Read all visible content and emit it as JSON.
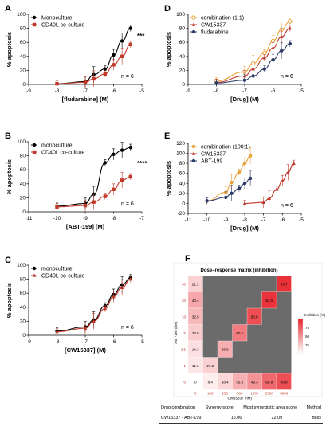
{
  "chart_data": [
    {
      "panel": "A",
      "type": "line",
      "xlabel": "[fludarabine] (M)",
      "ylabel": "% apoptosis",
      "xlim": [
        -9,
        -5
      ],
      "ylim": [
        0,
        100
      ],
      "xticks": [
        "-9",
        "-8",
        "-7",
        "-6",
        "-5"
      ],
      "yticks": [
        "0",
        "20",
        "40",
        "60",
        "80",
        "100"
      ],
      "annotations": [
        "***",
        "n = 6"
      ],
      "legend_position": "top-left",
      "series": [
        {
          "name": "Monoculture",
          "color": "#000000",
          "marker": "circle",
          "x": [
            -8,
            -7,
            -6.7,
            -6.3,
            -6,
            -5.7,
            -5.4
          ],
          "y": [
            1,
            4,
            14,
            22,
            42,
            62,
            80
          ]
        },
        {
          "name": "CD40L co-culture",
          "color": "#c0392b",
          "marker": "square",
          "x": [
            -8,
            -7,
            -6.7,
            -6.3,
            -6,
            -5.7,
            -5.4
          ],
          "y": [
            1,
            3,
            8,
            15,
            28,
            40,
            57
          ]
        }
      ]
    },
    {
      "panel": "B",
      "type": "line",
      "xlabel": "[ABT-199] (M)",
      "ylabel": "% apoptosis",
      "xlim": [
        -11,
        -7
      ],
      "ylim": [
        0,
        100
      ],
      "xticks": [
        "-11",
        "-10",
        "-9",
        "-8",
        "-7"
      ],
      "yticks": [
        "0",
        "20",
        "40",
        "60",
        "80",
        "100"
      ],
      "annotations": [
        "****",
        "n = 6"
      ],
      "legend_position": "top-left",
      "series": [
        {
          "name": "monoculture",
          "color": "#000000",
          "marker": "circle",
          "x": [
            -10,
            -9,
            -8.7,
            -8.3,
            -8,
            -7.7,
            -7.4
          ],
          "y": [
            8,
            12,
            25,
            70,
            82,
            88,
            92
          ]
        },
        {
          "name": "CD40L co-culture",
          "color": "#c0392b",
          "marker": "square",
          "x": [
            -10,
            -9,
            -8.7,
            -8.3,
            -8,
            -7.7,
            -7.4
          ],
          "y": [
            7,
            9,
            14,
            22,
            32,
            45,
            50
          ]
        }
      ]
    },
    {
      "panel": "C",
      "type": "line",
      "xlabel": "[CW15337] (M)",
      "ylabel": "% apoptosis",
      "xlim": [
        -9,
        -5
      ],
      "ylim": [
        0,
        100
      ],
      "xticks": [
        "-9",
        "-8",
        "-7",
        "-6",
        "-5"
      ],
      "yticks": [
        "0",
        "20",
        "40",
        "60",
        "80",
        "100"
      ],
      "annotations": [
        "n = 6"
      ],
      "legend_position": "top-left",
      "series": [
        {
          "name": "monoculture",
          "color": "#000000",
          "marker": "circle",
          "x": [
            -8,
            -7,
            -6.7,
            -6.3,
            -6,
            -5.7,
            -5.4
          ],
          "y": [
            6,
            12,
            22,
            42,
            58,
            72,
            82
          ]
        },
        {
          "name": "CD40L co-culture",
          "color": "#c0392b",
          "marker": "triangle",
          "x": [
            -8,
            -7,
            -6.7,
            -6.3,
            -6,
            -5.7,
            -5.4
          ],
          "y": [
            5,
            10,
            20,
            38,
            55,
            68,
            80
          ]
        }
      ]
    },
    {
      "panel": "D",
      "type": "line",
      "xlabel": "[Drug] (M)",
      "ylabel": "% apoptosis",
      "xlim": [
        -9,
        -5
      ],
      "ylim": [
        0,
        100
      ],
      "xticks": [
        "-9",
        "-8",
        "-7",
        "-6",
        "-5"
      ],
      "yticks": [
        "0",
        "20",
        "40",
        "60",
        "80",
        "100"
      ],
      "annotations": [
        "n = 6"
      ],
      "legend_position": "top-left",
      "series": [
        {
          "name": "combination (1:1)",
          "color": "#e8a23a",
          "marker": "open-circle",
          "x": [
            -8,
            -7,
            -6.7,
            -6.3,
            -6,
            -5.7,
            -5.4
          ],
          "y": [
            5,
            18,
            30,
            45,
            62,
            78,
            90
          ]
        },
        {
          "name": "CW15337",
          "color": "#c0392b",
          "marker": "triangle",
          "x": [
            -8,
            -7,
            -6.7,
            -6.3,
            -6,
            -5.7,
            -5.4
          ],
          "y": [
            3,
            12,
            22,
            38,
            52,
            68,
            80
          ]
        },
        {
          "name": "fludarabine",
          "color": "#2b3a67",
          "marker": "circle",
          "x": [
            -8,
            -7,
            -6.7,
            -6.3,
            -6,
            -5.7,
            -5.4
          ],
          "y": [
            2,
            6,
            12,
            22,
            35,
            48,
            58
          ]
        }
      ]
    },
    {
      "panel": "E",
      "type": "line",
      "xlabel": "[Drug] (M)",
      "ylabel": "% apoptosis",
      "xlim": [
        -11,
        -5
      ],
      "ylim": [
        -20,
        120
      ],
      "xticks": [
        "-11",
        "-10",
        "-9",
        "-8",
        "-7",
        "-6",
        "-5"
      ],
      "yticks": [
        "-20",
        "0",
        "20",
        "40",
        "60",
        "80",
        "100",
        "120"
      ],
      "annotations": [
        "n = 6"
      ],
      "legend_position": "top-left",
      "series": [
        {
          "name": "combination (100:1)",
          "color": "#e8a23a",
          "marker": "circle",
          "x": [
            -10,
            -9,
            -8.7,
            -8.3,
            -8,
            -7.7
          ],
          "y": [
            5,
            22,
            42,
            62,
            80,
            95
          ]
        },
        {
          "name": "CW15337",
          "color": "#c0392b",
          "marker": "triangle",
          "x": [
            -8,
            -7,
            -6.7,
            -6.3,
            -6,
            -5.7,
            -5.4
          ],
          "y": [
            0,
            2,
            10,
            28,
            45,
            62,
            80
          ]
        },
        {
          "name": "ABT-199",
          "color": "#2b3a67",
          "marker": "circle",
          "x": [
            -10,
            -9,
            -8.7,
            -8.3,
            -8,
            -7.7
          ],
          "y": [
            5,
            12,
            20,
            30,
            40,
            50
          ]
        }
      ]
    },
    {
      "panel": "F",
      "type": "heatmap",
      "title": "Dose–response matrix (inhibition)",
      "xlabel": "CW15337 (nM)",
      "ylabel": "ABT-199 (nM)",
      "x_categories": [
        "0",
        "100",
        "250",
        "500",
        "1000",
        "2500",
        "5000"
      ],
      "y_categories": [
        "0",
        "1",
        "2.5",
        "5",
        "10",
        "20",
        "30"
      ],
      "cells": [
        {
          "row": "30",
          "col": "0",
          "value": "21.2"
        },
        {
          "row": "20",
          "col": "0",
          "value": "40.4"
        },
        {
          "row": "10",
          "col": "0",
          "value": "32.5"
        },
        {
          "row": "5",
          "col": "0",
          "value": "23.8"
        },
        {
          "row": "2.5",
          "col": "0",
          "value": "14.3"
        },
        {
          "row": "1",
          "col": "0",
          "value": "11.6"
        },
        {
          "row": "0",
          "col": "0",
          "value": "0"
        },
        {
          "row": "1",
          "col": "100",
          "value": "21.2"
        },
        {
          "row": "0",
          "col": "100",
          "value": "8.4"
        },
        {
          "row": "2.5",
          "col": "250",
          "value": "36.9"
        },
        {
          "row": "0",
          "col": "250",
          "value": "18.4"
        },
        {
          "row": "5",
          "col": "500",
          "value": "60.5"
        },
        {
          "row": "0",
          "col": "500",
          "value": "36.3"
        },
        {
          "row": "10",
          "col": "1000",
          "value": "80.8"
        },
        {
          "row": "0",
          "col": "1000",
          "value": "49.3"
        },
        {
          "row": "20",
          "col": "2500",
          "value": "93.0"
        },
        {
          "row": "0",
          "col": "2500",
          "value": "68.8"
        },
        {
          "row": "30",
          "col": "5000",
          "value": "93.7"
        },
        {
          "row": "0",
          "col": "5000",
          "value": "80.8"
        }
      ],
      "colorbar": {
        "label": "Inhibition (%)",
        "ticks": [
          "75",
          "50",
          "25"
        ],
        "min_color": "#ffffff",
        "max_color": "#e8242b"
      },
      "empty_cell_color": "#6b6b6b"
    }
  ],
  "table": {
    "headers": [
      "Drug combination",
      "Synergy score",
      "Most synergistic area score",
      "Method"
    ],
    "rows": [
      [
        "CW15337 - ABT-199",
        "15.06",
        "22.09",
        "Bliss"
      ]
    ]
  }
}
